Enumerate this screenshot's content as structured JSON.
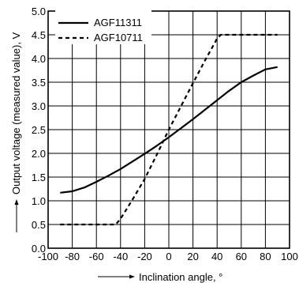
{
  "chart_data": {
    "type": "line",
    "xlabel": "Inclination angle, °",
    "ylabel": "Output voltage (measured value), V",
    "xlim": [
      -100,
      100
    ],
    "ylim": [
      0.0,
      5.0
    ],
    "x_ticks": [
      -100,
      -80,
      -60,
      -40,
      -20,
      0,
      20,
      40,
      60,
      80,
      100
    ],
    "y_ticks": [
      "0.0",
      "0.5",
      "1.0",
      "1.5",
      "2.0",
      "2.5",
      "3.0",
      "3.5",
      "4.0",
      "4.5",
      "5.0"
    ],
    "grid": true,
    "legend_position": "top-left",
    "series": [
      {
        "name": "AGF11311",
        "style": "solid",
        "x": [
          -90,
          -80,
          -70,
          -60,
          -50,
          -40,
          -30,
          -20,
          -10,
          0,
          10,
          20,
          30,
          40,
          50,
          60,
          70,
          80,
          90
        ],
        "y": [
          1.17,
          1.2,
          1.28,
          1.4,
          1.53,
          1.67,
          1.83,
          1.99,
          2.16,
          2.34,
          2.53,
          2.72,
          2.92,
          3.12,
          3.32,
          3.5,
          3.64,
          3.77,
          3.82
        ]
      },
      {
        "name": "AGF10711",
        "style": "dashed",
        "x": [
          -90,
          -60,
          -44,
          -40,
          -30,
          -20,
          -10,
          0,
          10,
          20,
          30,
          40,
          43,
          60,
          90
        ],
        "y": [
          0.5,
          0.5,
          0.5,
          0.62,
          1.03,
          1.46,
          1.97,
          2.5,
          2.99,
          3.48,
          3.96,
          4.42,
          4.5,
          4.5,
          4.5
        ]
      }
    ]
  }
}
